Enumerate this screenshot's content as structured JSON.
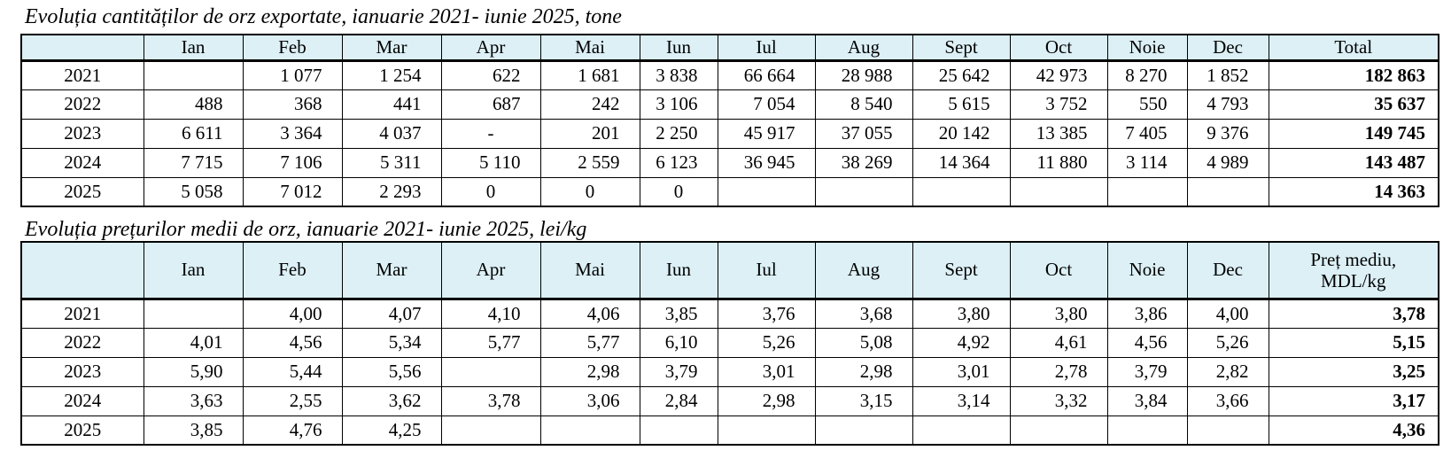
{
  "table1": {
    "title": "Evoluția cantităților de orz exportate, ianuarie 2021- iunie 2025,  tone",
    "headers": [
      "",
      "Ian",
      "Feb",
      "Mar",
      "Apr",
      "Mai",
      "Iun",
      "Iul",
      "Aug",
      "Sept",
      "Oct",
      "Noie",
      "Dec",
      "Total"
    ],
    "rows": [
      [
        "2021",
        "",
        "1 077",
        "1 254",
        "622",
        "1 681",
        "3 838",
        "66 664",
        "28 988",
        "25 642",
        "42 973",
        "8 270",
        "1 852",
        "182 863"
      ],
      [
        "2022",
        "488",
        "368",
        "441",
        "687",
        "242",
        "3 106",
        "7 054",
        "8 540",
        "5 615",
        "3 752",
        "550",
        "4 793",
        "35 637"
      ],
      [
        "2023",
        "6 611",
        "3 364",
        "4 037",
        "-",
        "201",
        "2 250",
        "45 917",
        "37 055",
        "20 142",
        "13 385",
        "7 405",
        "9 376",
        "149 745"
      ],
      [
        "2024",
        "7 715",
        "7 106",
        "5 311",
        "5 110",
        "2 559",
        "6 123",
        "36 945",
        "38 269",
        "14 364",
        "11 880",
        "3 114",
        "4 989",
        "143 487"
      ],
      [
        "2025",
        "5 058",
        "7 012",
        "2 293",
        "0",
        "0",
        "0",
        "",
        "",
        "",
        "",
        "",
        "",
        "14 363"
      ]
    ]
  },
  "table2": {
    "title": "Evoluția prețurilor medii de orz, ianuarie 2021- iunie 2025,  lei/kg",
    "headers": [
      "",
      "Ian",
      "Feb",
      "Mar",
      "Apr",
      "Mai",
      "Iun",
      "Iul",
      "Aug",
      "Sept",
      "Oct",
      "Noie",
      "Dec"
    ],
    "last_header_line1": "Preț mediu,",
    "last_header_line2": "MDL/kg",
    "rows": [
      [
        "2021",
        "",
        "4,00",
        "4,07",
        "4,10",
        "4,06",
        "3,85",
        "3,76",
        "3,68",
        "3,80",
        "3,80",
        "3,86",
        "4,00",
        "3,78"
      ],
      [
        "2022",
        "4,01",
        "4,56",
        "5,34",
        "5,77",
        "5,77",
        "6,10",
        "5,26",
        "5,08",
        "4,92",
        "4,61",
        "4,56",
        "5,26",
        "5,15"
      ],
      [
        "2023",
        "5,90",
        "5,44",
        "5,56",
        "",
        "2,98",
        "3,79",
        "3,01",
        "2,98",
        "3,01",
        "2,78",
        "3,79",
        "2,82",
        "3,25"
      ],
      [
        "2024",
        "3,63",
        "2,55",
        "3,62",
        "3,78",
        "3,06",
        "2,84",
        "2,98",
        "3,15",
        "3,14",
        "3,32",
        "3,84",
        "3,66",
        "3,17"
      ],
      [
        "2025",
        "3,85",
        "4,76",
        "4,25",
        "",
        "",
        "",
        "",
        "",
        "",
        "",
        "",
        "",
        "4,36"
      ]
    ]
  }
}
